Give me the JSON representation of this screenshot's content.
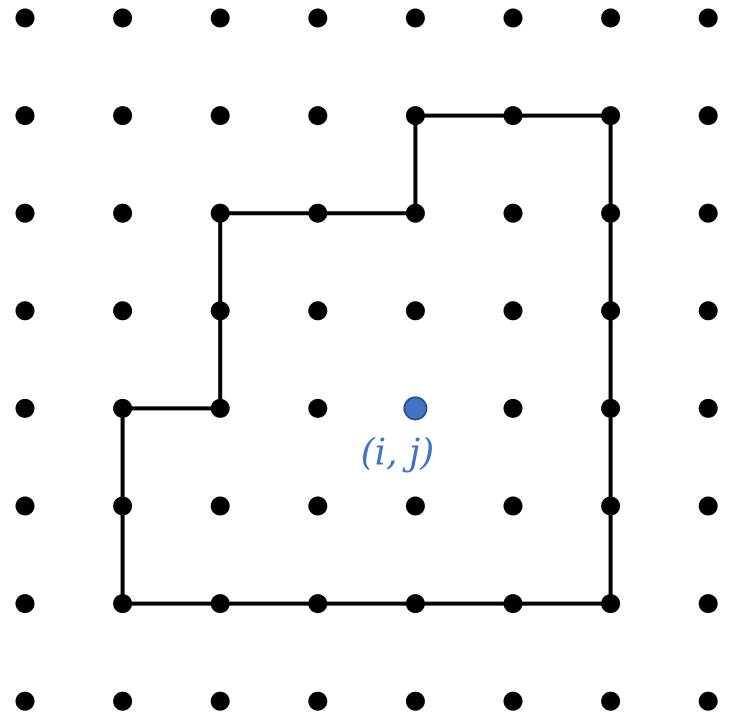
{
  "diagram": {
    "point_label": "(i, j)",
    "colors": {
      "dot": "#000000",
      "boundary": "#000000",
      "highlight": "#4472c4",
      "label": "#4472c4"
    }
  }
}
